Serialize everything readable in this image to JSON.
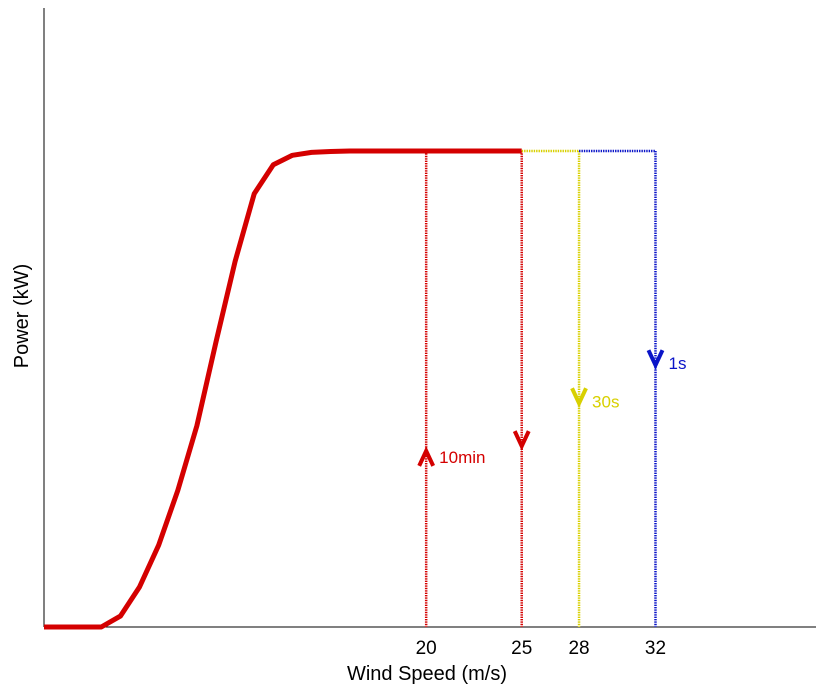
{
  "chart_data": {
    "type": "line",
    "title": "",
    "xlabel": "Wind Speed (m/s)",
    "ylabel": "Power (kW)",
    "xlim": [
      0,
      40.4
    ],
    "ylim": [
      0,
      1.0
    ],
    "grid": false,
    "legend": "none",
    "x_ticks": [
      20,
      25,
      28,
      32
    ],
    "x_tick_labels": [
      "20",
      "25",
      "28",
      "32"
    ],
    "power_curve": {
      "color": "#d40000",
      "x": [
        0,
        3.0,
        4.0,
        5.0,
        6.0,
        7.0,
        8.0,
        9.0,
        10.0,
        11.0,
        12.0,
        13.0,
        14.0,
        15.0,
        16.0,
        18.0,
        20.0,
        22.0,
        25.0
      ],
      "y": [
        0,
        0,
        0.023,
        0.084,
        0.172,
        0.287,
        0.423,
        0.599,
        0.768,
        0.91,
        0.971,
        0.991,
        0.997,
        0.999,
        1.0,
        1.0,
        1.0,
        1.0,
        1.0
      ]
    },
    "extensions": [
      {
        "x_start": 25,
        "x_end": 28,
        "y": 1.0,
        "color": "#d8d000"
      },
      {
        "x_start": 28,
        "x_end": 32,
        "y": 1.0,
        "color": "#0a14c8"
      }
    ],
    "cut_lines": [
      {
        "x": 20,
        "color": "#d40000",
        "direction": "up",
        "arrow_y": 0.37,
        "label": "10min"
      },
      {
        "x": 25,
        "color": "#d40000",
        "direction": "down",
        "arrow_y": 0.38,
        "label": ""
      },
      {
        "x": 28,
        "color": "#d8d000",
        "direction": "down",
        "arrow_y": 0.47,
        "label": "30s"
      },
      {
        "x": 32,
        "color": "#0a14c8",
        "direction": "down",
        "arrow_y": 0.55,
        "label": "1s"
      }
    ]
  }
}
